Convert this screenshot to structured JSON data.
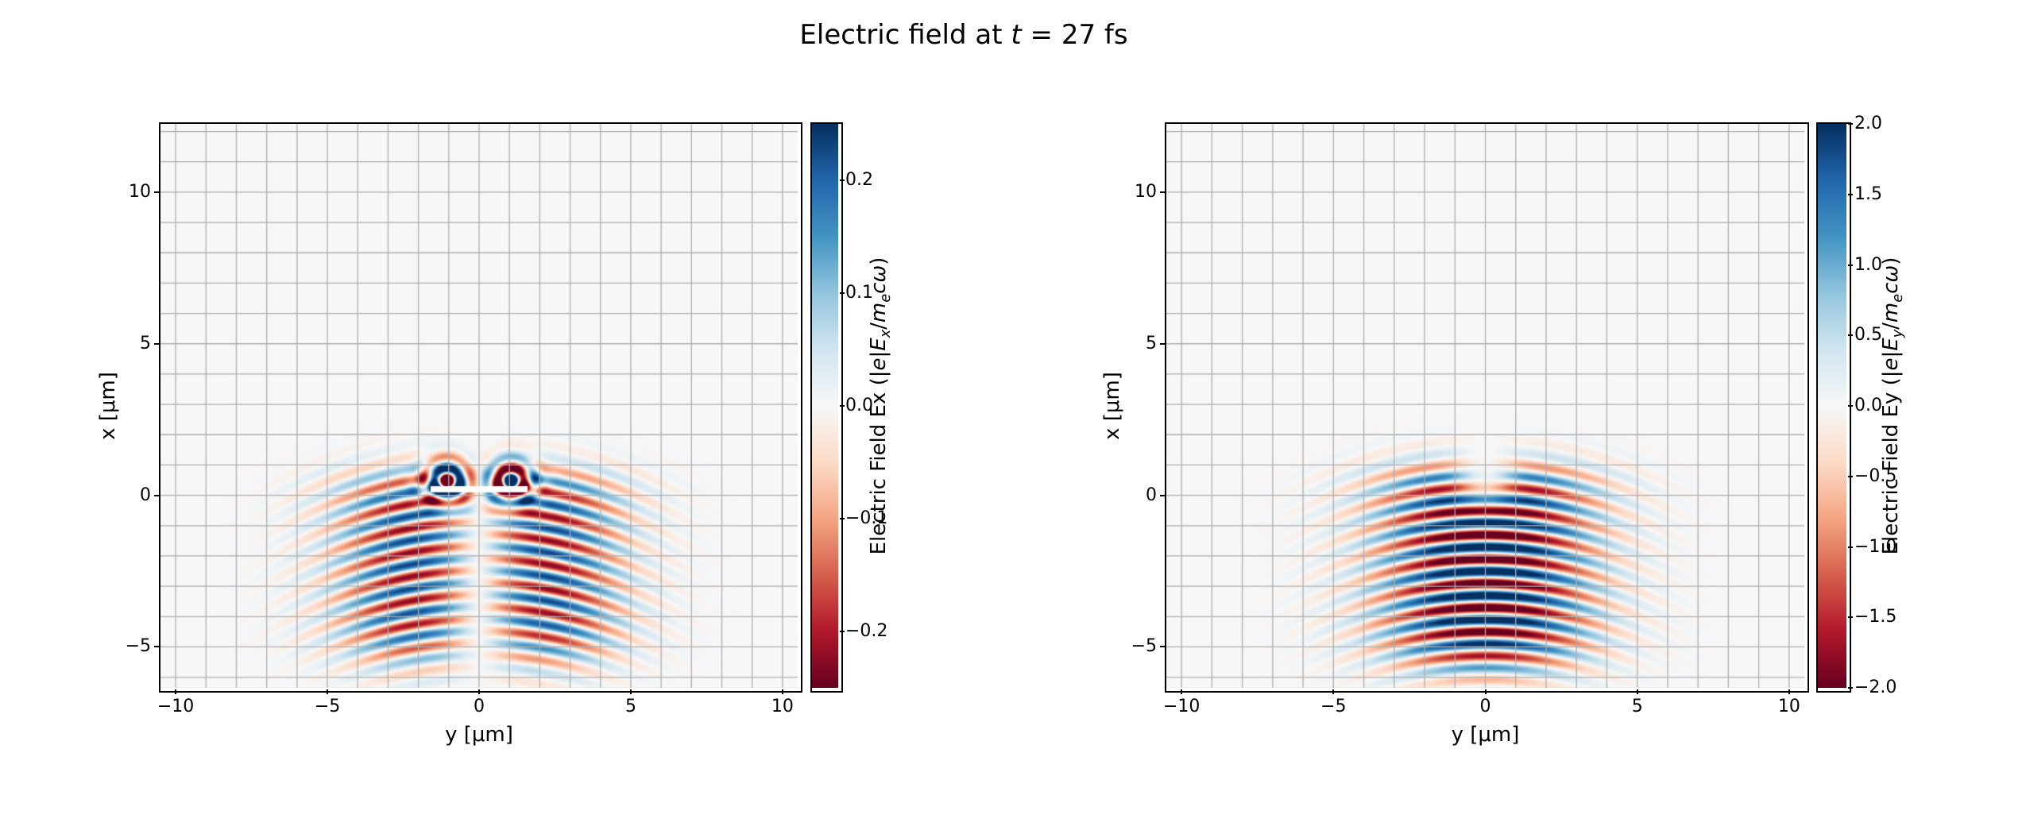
{
  "figure": {
    "title": "Electric field at t = 27 fs",
    "title_parts": [
      {
        "t": "Electric field at "
      },
      {
        "t": "t",
        "i": true
      },
      {
        "t": " = 27 fs"
      }
    ],
    "time_fs": 27,
    "background": "#ffffff"
  },
  "colormap": {
    "name": "RdBu",
    "stops": [
      "#67001f",
      "#b2182b",
      "#d6604d",
      "#f4a582",
      "#fddbc7",
      "#f7f7f7",
      "#d1e5f0",
      "#92c5de",
      "#4393c3",
      "#2166ac",
      "#053061"
    ]
  },
  "grid": {
    "color": "#aeaeae",
    "spacing_um": 1,
    "frame_color": "#000000"
  },
  "chart_data": [
    {
      "type": "heatmap",
      "subplot": "left",
      "xlabel": "y [μm]",
      "ylabel": "x [μm]",
      "xlim": [
        -10.5,
        10.5
      ],
      "ylim": [
        -6.35,
        12.25
      ],
      "xticks": [
        {
          "v": -10,
          "label": "−10"
        },
        {
          "v": -5,
          "label": "−5"
        },
        {
          "v": 0,
          "label": "0"
        },
        {
          "v": 5,
          "label": "5"
        },
        {
          "v": 10,
          "label": "10"
        }
      ],
      "yticks": [
        {
          "v": -5,
          "label": "−5"
        },
        {
          "v": 0,
          "label": "0"
        },
        {
          "v": 5,
          "label": "5"
        },
        {
          "v": 10,
          "label": "10"
        }
      ],
      "colorbar": {
        "label": "Electric Field Ex (|e|Ex/mecω)",
        "label_parts": [
          {
            "t": "Electric Field Ex (|"
          },
          {
            "t": "e",
            "i": true
          },
          {
            "t": "|"
          },
          {
            "t": "E",
            "i": true
          },
          {
            "t": "x",
            "i": true,
            "sub": true
          },
          {
            "t": "/"
          },
          {
            "t": "m",
            "i": true
          },
          {
            "t": "e",
            "i": true,
            "sub": true
          },
          {
            "t": "c",
            "i": true
          },
          {
            "t": "ω",
            "i": true
          },
          {
            "t": ")"
          }
        ],
        "vmin": -0.25,
        "vmax": 0.25,
        "ticks": [
          {
            "v": 0.2,
            "label": "0.2"
          },
          {
            "v": 0.1,
            "label": "0.1"
          },
          {
            "v": 0.0,
            "label": "0.0"
          },
          {
            "v": -0.1,
            "label": "−0.1"
          },
          {
            "v": -0.2,
            "label": "−0.2"
          }
        ]
      },
      "field": {
        "component": "Ex",
        "wavelength_um": 0.8,
        "peak_amplitude": 0.3,
        "waist_um": 3.2,
        "transverse_scale_um": 1.8,
        "phase_curvature_um": 24,
        "phase_offset": 0.6,
        "x_front_um": 0.7,
        "x_back_um": -5.4,
        "front_vortices": {
          "x_um": 0.45,
          "y_um": 1.05,
          "amplitude": 0.5,
          "radius_um": 0.7
        },
        "marker_bar": {
          "x_um": 0.2,
          "y_from_um": -1.6,
          "y_to_um": 1.6,
          "thickness_um": 0.2,
          "color": "#ffffff"
        }
      }
    },
    {
      "type": "heatmap",
      "subplot": "right",
      "xlabel": "y [μm]",
      "ylabel": "x [μm]",
      "xlim": [
        -10.5,
        10.5
      ],
      "ylim": [
        -6.35,
        12.25
      ],
      "xticks": [
        {
          "v": -10,
          "label": "−10"
        },
        {
          "v": -5,
          "label": "−5"
        },
        {
          "v": 0,
          "label": "0"
        },
        {
          "v": 5,
          "label": "5"
        },
        {
          "v": 10,
          "label": "10"
        }
      ],
      "yticks": [
        {
          "v": -5,
          "label": "−5"
        },
        {
          "v": 0,
          "label": "0"
        },
        {
          "v": 5,
          "label": "5"
        },
        {
          "v": 10,
          "label": "10"
        }
      ],
      "colorbar": {
        "label": "Electric Field Ey (|e|Ey/mecω)",
        "label_parts": [
          {
            "t": "Electric Field Ey (|"
          },
          {
            "t": "e",
            "i": true
          },
          {
            "t": "|"
          },
          {
            "t": "E",
            "i": true
          },
          {
            "t": "y",
            "i": true,
            "sub": true
          },
          {
            "t": "/"
          },
          {
            "t": "m",
            "i": true
          },
          {
            "t": "e",
            "i": true,
            "sub": true
          },
          {
            "t": "c",
            "i": true
          },
          {
            "t": "ω",
            "i": true
          },
          {
            "t": ")"
          }
        ],
        "vmin": -2.0,
        "vmax": 2.0,
        "ticks": [
          {
            "v": 2.0,
            "label": "2.0"
          },
          {
            "v": 1.5,
            "label": "1.5"
          },
          {
            "v": 1.0,
            "label": "1.0"
          },
          {
            "v": 0.5,
            "label": "0.5"
          },
          {
            "v": 0.0,
            "label": "0.0"
          },
          {
            "v": -0.5,
            "label": "−0.5"
          },
          {
            "v": -1.0,
            "label": "−1.0"
          },
          {
            "v": -1.5,
            "label": "−1.5"
          },
          {
            "v": -2.0,
            "label": "−2.0"
          }
        ]
      },
      "field": {
        "component": "Ey",
        "wavelength_um": 0.8,
        "peak_amplitude": 2.6,
        "waist_um": 3.4,
        "phase_curvature_um": 24,
        "phase_offset": 2.4,
        "x_front_um": 0.9,
        "x_back_um": -5.6,
        "front_notch": {
          "width_um": 1.0,
          "edge_x_um": -0.1,
          "edge_width_um": 0.3
        }
      }
    }
  ]
}
